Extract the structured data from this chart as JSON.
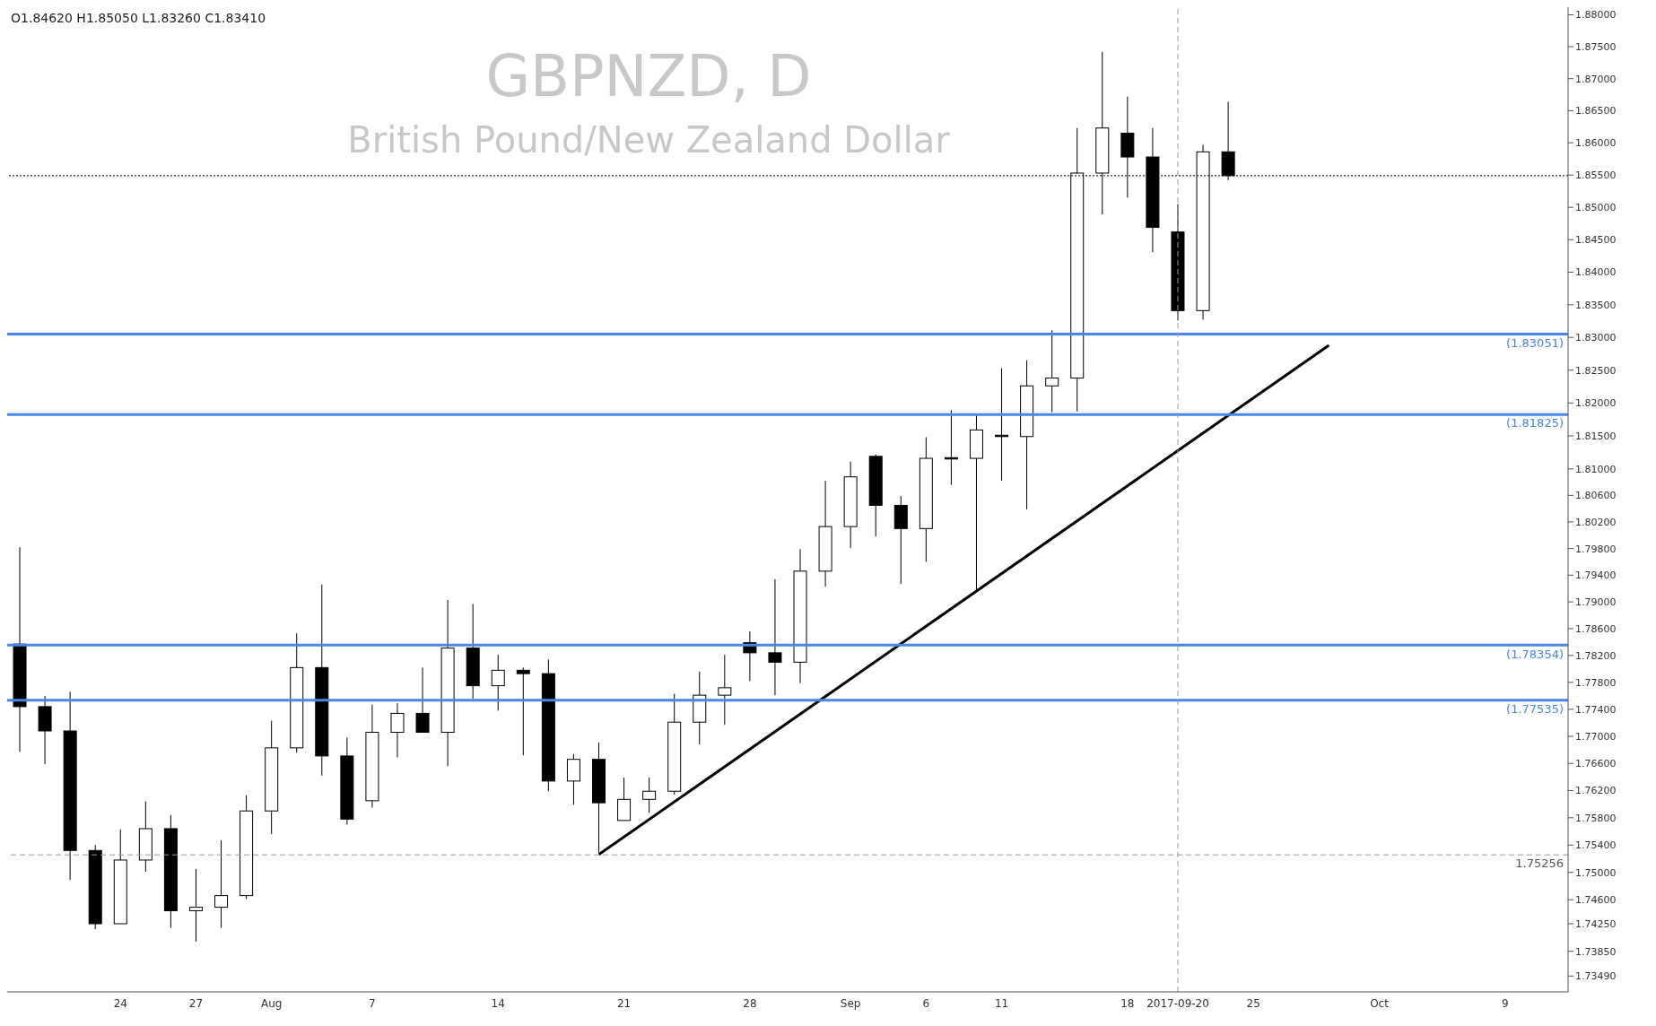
{
  "chart_data": {
    "type": "candlestick",
    "title": "GBPNZD, D",
    "subtitle": "British Pound/New Zealand Dollar",
    "annotations": [
      "O1.84620 H1.85050 L1.83260 C1.83410"
    ],
    "categories": [
      null,
      null,
      null,
      null,
      "24",
      null,
      null,
      "27",
      null,
      null,
      "Aug",
      null,
      null,
      null,
      "7",
      null,
      null,
      null,
      null,
      "14",
      null,
      null,
      null,
      null,
      "21",
      null,
      null,
      null,
      null,
      "28",
      null,
      null,
      null,
      "Sep",
      null,
      null,
      "6",
      null,
      null,
      "11",
      null,
      null,
      null,
      null,
      "18",
      null,
      "2017-09-20",
      null,
      null,
      "25",
      null,
      null,
      null,
      null,
      "Oct",
      null,
      null,
      null,
      null,
      "9",
      null,
      null
    ],
    "ohlc": [
      [
        1.7837,
        1.7982,
        1.7677,
        1.7744
      ],
      [
        1.7744,
        1.776,
        1.7659,
        1.7708
      ],
      [
        1.7708,
        1.7766,
        1.7489,
        1.7532
      ],
      [
        1.7532,
        1.754,
        1.7417,
        1.7425
      ],
      [
        1.7425,
        1.7563,
        1.7425,
        1.7518
      ],
      [
        1.7518,
        1.7604,
        1.7501,
        1.7564
      ],
      [
        1.7564,
        1.7584,
        1.7419,
        1.7444
      ],
      [
        1.7444,
        1.7505,
        1.7399,
        1.7449
      ],
      [
        1.7449,
        1.7547,
        1.7419,
        1.7466
      ],
      [
        1.7466,
        1.7613,
        1.7461,
        1.759
      ],
      [
        1.759,
        1.7723,
        1.7556,
        1.7683
      ],
      [
        1.7683,
        1.7853,
        1.7676,
        1.7802
      ],
      [
        1.7802,
        1.7926,
        1.7642,
        1.7671
      ],
      [
        1.7671,
        1.7698,
        1.757,
        1.7578
      ],
      [
        1.7605,
        1.7747,
        1.7595,
        1.7706
      ],
      [
        1.7706,
        1.7749,
        1.7669,
        1.7734
      ],
      [
        1.7734,
        1.7802,
        1.7706,
        1.7706
      ],
      [
        1.7706,
        1.7903,
        1.7656,
        1.7831
      ],
      [
        1.7831,
        1.7897,
        1.7756,
        1.7775
      ],
      [
        1.7775,
        1.7821,
        1.7738,
        1.7798
      ],
      [
        1.7798,
        1.7802,
        1.7672,
        1.7793
      ],
      [
        1.7793,
        1.7814,
        1.7619,
        1.7634
      ],
      [
        1.7634,
        1.7674,
        1.7599,
        1.7666
      ],
      [
        1.7666,
        1.7691,
        1.7529,
        1.7602
      ],
      [
        1.7576,
        1.7639,
        1.7576,
        1.7607
      ],
      [
        1.7607,
        1.7639,
        1.7587,
        1.7619
      ],
      [
        1.7619,
        1.7763,
        1.7614,
        1.7721
      ],
      [
        1.7721,
        1.7796,
        1.7688,
        1.7761
      ],
      [
        1.7761,
        1.7821,
        1.7717,
        1.7772
      ],
      [
        1.7839,
        1.7856,
        1.7782,
        1.7824
      ],
      [
        1.7824,
        1.7934,
        1.7761,
        1.781
      ],
      [
        1.781,
        1.7979,
        1.7779,
        1.7946
      ],
      [
        1.7946,
        1.8082,
        1.7923,
        1.8013
      ],
      [
        1.8013,
        1.8111,
        1.7981,
        1.8088
      ],
      [
        1.8119,
        1.8122,
        1.7998,
        1.8045
      ],
      [
        1.8045,
        1.8059,
        1.7927,
        1.801
      ],
      [
        1.801,
        1.8148,
        1.796,
        1.8116
      ],
      [
        1.8117,
        1.8189,
        1.8076,
        1.8115
      ],
      [
        1.8116,
        1.8183,
        1.7914,
        1.8159
      ],
      [
        1.8151,
        1.8253,
        1.8082,
        1.8149
      ],
      [
        1.8149,
        1.8265,
        1.8039,
        1.8226
      ],
      [
        1.8226,
        1.8311,
        1.8186,
        1.8238
      ],
      [
        1.8238,
        1.8623,
        1.8187,
        1.8553
      ],
      [
        1.8553,
        1.8742,
        1.8489,
        1.8623
      ],
      [
        1.8615,
        1.8672,
        1.8515,
        1.8578
      ],
      [
        1.8578,
        1.8623,
        1.8431,
        1.8469
      ],
      [
        1.8462,
        1.8505,
        1.8326,
        1.8341
      ],
      [
        1.8341,
        1.8597,
        1.8327,
        1.8586
      ],
      [
        1.8586,
        1.8664,
        1.8542,
        1.8549
      ],
      null,
      null,
      null,
      null,
      null,
      null,
      null,
      null,
      null,
      null,
      null,
      null,
      null
    ],
    "series": [
      {
        "type": "line",
        "color": "#000000",
        "values": [
          null,
          null,
          null,
          null,
          null,
          null,
          null,
          null,
          null,
          null,
          null,
          null,
          null,
          null,
          null,
          null,
          null,
          null,
          null,
          null,
          null,
          null,
          null,
          1.7526,
          null,
          null,
          null,
          null,
          null,
          null,
          null,
          null,
          null,
          null,
          null,
          null,
          null,
          null,
          null,
          null,
          null,
          null,
          null,
          null,
          null,
          null,
          null,
          null,
          null,
          null,
          null,
          null,
          1.8288,
          null,
          null,
          null,
          null,
          null,
          null,
          null,
          null,
          null
        ]
      }
    ],
    "log": true,
    "ylim": [
      1.7326,
      1.8812
    ],
    "yticks": [
      {
        "value": 1.88,
        "label": "1.88000"
      },
      {
        "value": 1.875,
        "label": "1.87500"
      },
      {
        "value": 1.87,
        "label": "1.87000"
      },
      {
        "value": 1.865,
        "label": "1.86500"
      },
      {
        "value": 1.86,
        "label": "1.86000"
      },
      {
        "value": 1.855,
        "label": "1.85500"
      },
      {
        "value": 1.85,
        "label": "1.85000"
      },
      {
        "value": 1.845,
        "label": "1.84500"
      },
      {
        "value": 1.84,
        "label": "1.84000"
      },
      {
        "value": 1.835,
        "label": "1.83500"
      },
      {
        "value": 1.83,
        "label": "1.83000"
      },
      {
        "value": 1.825,
        "label": "1.82500"
      },
      {
        "value": 1.82,
        "label": "1.82000"
      },
      {
        "value": 1.815,
        "label": "1.81500"
      },
      {
        "value": 1.81,
        "label": "1.81000"
      },
      {
        "value": 1.806,
        "label": "1.80600"
      },
      {
        "value": 1.802,
        "label": "1.80200"
      },
      {
        "value": 1.798,
        "label": "1.79800"
      },
      {
        "value": 1.794,
        "label": "1.79400"
      },
      {
        "value": 1.79,
        "label": "1.79000"
      },
      {
        "value": 1.786,
        "label": "1.78600"
      },
      {
        "value": 1.782,
        "label": "1.78200"
      },
      {
        "value": 1.778,
        "label": "1.77800"
      },
      {
        "value": 1.774,
        "label": "1.77400"
      },
      {
        "value": 1.77,
        "label": "1.77000"
      },
      {
        "value": 1.766,
        "label": "1.76600"
      },
      {
        "value": 1.762,
        "label": "1.76200"
      },
      {
        "value": 1.758,
        "label": "1.75800"
      },
      {
        "value": 1.754,
        "label": "1.75400"
      },
      {
        "value": 1.75,
        "label": "1.75000"
      },
      {
        "value": 1.746,
        "label": "1.74600"
      },
      {
        "value": 1.7425,
        "label": "1.74250"
      },
      {
        "value": 1.7385,
        "label": "1.73850"
      },
      {
        "value": 1.7349,
        "label": "1.73490"
      }
    ],
    "ref_lines": [
      {
        "axis": "y",
        "value": 1.83051,
        "label": "(1.83051)",
        "color": "#4a86e8",
        "line_style": "solid"
      },
      {
        "axis": "y",
        "value": 1.81825,
        "label": "(1.81825)",
        "color": "#4a86e8",
        "line_style": "solid"
      },
      {
        "axis": "y",
        "value": 1.78354,
        "label": "(1.78354)",
        "color": "#4a86e8",
        "line_style": "solid"
      },
      {
        "axis": "y",
        "value": 1.77535,
        "label": "(1.77535)",
        "color": "#4a86e8",
        "line_style": "solid"
      },
      {
        "axis": "y",
        "value": 1.8549,
        "label": null,
        "color": "#000000",
        "line_style": "dotted"
      },
      {
        "axis": "y",
        "value": 1.75256,
        "label": "1.75256",
        "color": "#999999",
        "line_style": "dashed"
      },
      {
        "axis": "x",
        "value": "2017-09-20",
        "label": null,
        "color": "#999999",
        "line_style": "dashed"
      }
    ],
    "grid": false
  }
}
